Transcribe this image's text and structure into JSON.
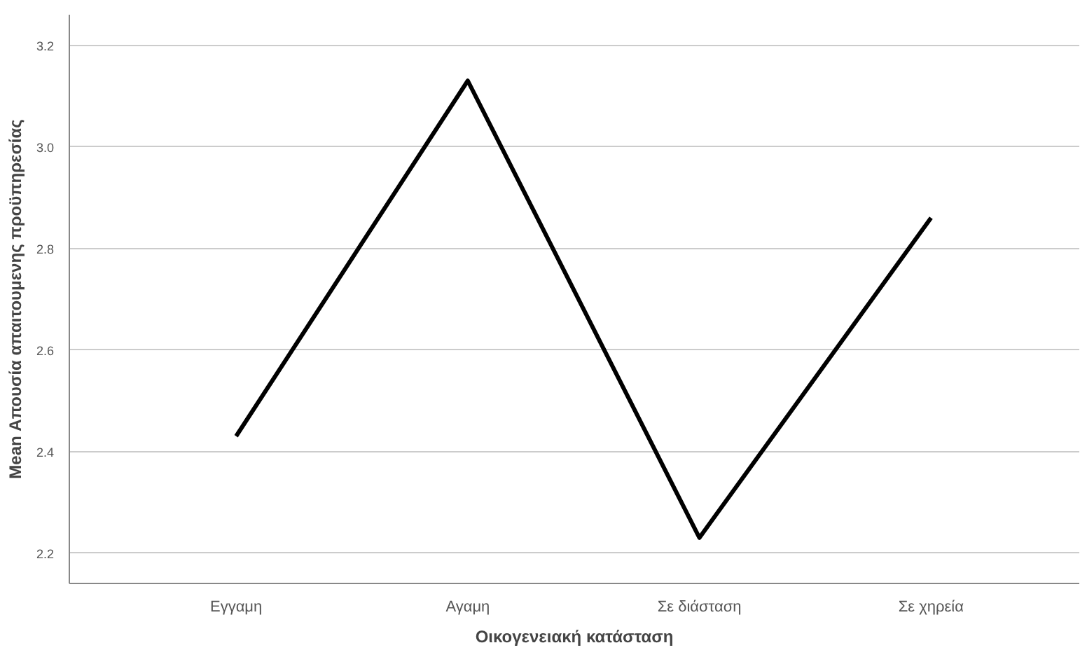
{
  "chart_data": {
    "type": "line",
    "xlabel": "Οικογενειακή κατάσταση",
    "ylabel": "Mean Απουσία απαιτουμενης προϋπηρεσίας",
    "categories": [
      "Εγγαμη",
      "Αγαμη",
      "Σε διάσταση",
      "Σε χηρεία"
    ],
    "series": [
      {
        "color": "#000000",
        "values": [
          2.43,
          3.13,
          2.23,
          2.86
        ]
      }
    ],
    "ylim": [
      2.14,
      3.26
    ],
    "yticks": [
      2.2,
      2.4,
      2.6,
      2.8,
      {
        "value": 3,
        "label": "3.0"
      },
      3.2
    ],
    "grid": "y",
    "marker": "none",
    "line_style": "solid"
  }
}
